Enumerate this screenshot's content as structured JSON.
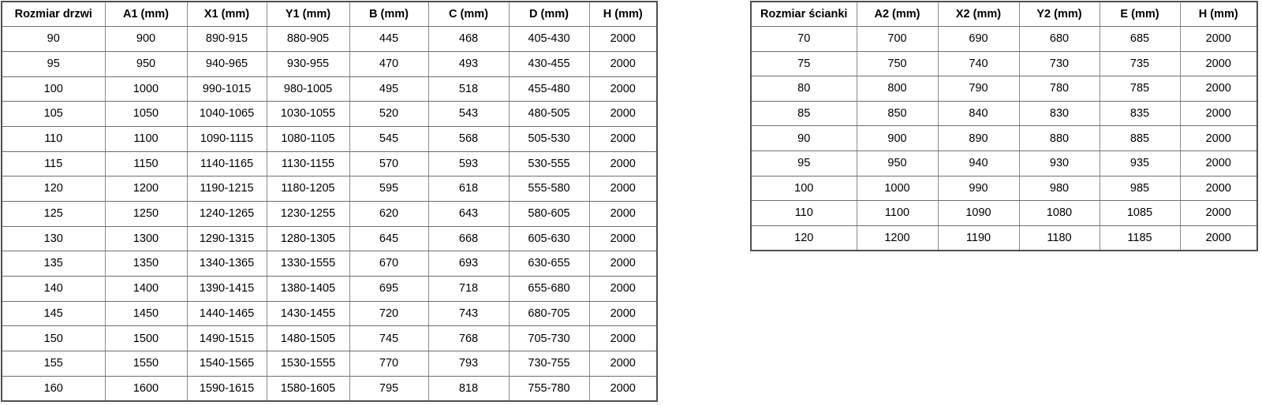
{
  "colors": {
    "background": "#ffffff",
    "inner_border": "#8c8c8c",
    "outer_border": "#4f4f4f",
    "text": "#000000"
  },
  "doors_table": {
    "headers": [
      "Rozmiar drzwi",
      "A1 (mm)",
      "X1 (mm)",
      "Y1 (mm)",
      "B (mm)",
      "C (mm)",
      "D (mm)",
      "H (mm)"
    ],
    "rows": [
      [
        "90",
        "900",
        "890-915",
        "880-905",
        "445",
        "468",
        "405-430",
        "2000"
      ],
      [
        "95",
        "950",
        "940-965",
        "930-955",
        "470",
        "493",
        "430-455",
        "2000"
      ],
      [
        "100",
        "1000",
        "990-1015",
        "980-1005",
        "495",
        "518",
        "455-480",
        "2000"
      ],
      [
        "105",
        "1050",
        "1040-1065",
        "1030-1055",
        "520",
        "543",
        "480-505",
        "2000"
      ],
      [
        "110",
        "1100",
        "1090-1115",
        "1080-1105",
        "545",
        "568",
        "505-530",
        "2000"
      ],
      [
        "115",
        "1150",
        "1140-1165",
        "1130-1155",
        "570",
        "593",
        "530-555",
        "2000"
      ],
      [
        "120",
        "1200",
        "1190-1215",
        "1180-1205",
        "595",
        "618",
        "555-580",
        "2000"
      ],
      [
        "125",
        "1250",
        "1240-1265",
        "1230-1255",
        "620",
        "643",
        "580-605",
        "2000"
      ],
      [
        "130",
        "1300",
        "1290-1315",
        "1280-1305",
        "645",
        "668",
        "605-630",
        "2000"
      ],
      [
        "135",
        "1350",
        "1340-1365",
        "1330-1555",
        "670",
        "693",
        "630-655",
        "2000"
      ],
      [
        "140",
        "1400",
        "1390-1415",
        "1380-1405",
        "695",
        "718",
        "655-680",
        "2000"
      ],
      [
        "145",
        "1450",
        "1440-1465",
        "1430-1455",
        "720",
        "743",
        "680-705",
        "2000"
      ],
      [
        "150",
        "1500",
        "1490-1515",
        "1480-1505",
        "745",
        "768",
        "705-730",
        "2000"
      ],
      [
        "155",
        "1550",
        "1540-1565",
        "1530-1555",
        "770",
        "793",
        "730-755",
        "2000"
      ],
      [
        "160",
        "1600",
        "1590-1615",
        "1580-1605",
        "795",
        "818",
        "755-780",
        "2000"
      ]
    ]
  },
  "walls_table": {
    "headers": [
      "Rozmiar ścianki",
      "A2 (mm)",
      "X2 (mm)",
      "Y2 (mm)",
      "E (mm)",
      "H (mm)"
    ],
    "rows": [
      [
        "70",
        "700",
        "690",
        "680",
        "685",
        "2000"
      ],
      [
        "75",
        "750",
        "740",
        "730",
        "735",
        "2000"
      ],
      [
        "80",
        "800",
        "790",
        "780",
        "785",
        "2000"
      ],
      [
        "85",
        "850",
        "840",
        "830",
        "835",
        "2000"
      ],
      [
        "90",
        "900",
        "890",
        "880",
        "885",
        "2000"
      ],
      [
        "95",
        "950",
        "940",
        "930",
        "935",
        "2000"
      ],
      [
        "100",
        "1000",
        "990",
        "980",
        "985",
        "2000"
      ],
      [
        "110",
        "1100",
        "1090",
        "1080",
        "1085",
        "2000"
      ],
      [
        "120",
        "1200",
        "1190",
        "1180",
        "1185",
        "2000"
      ]
    ]
  }
}
